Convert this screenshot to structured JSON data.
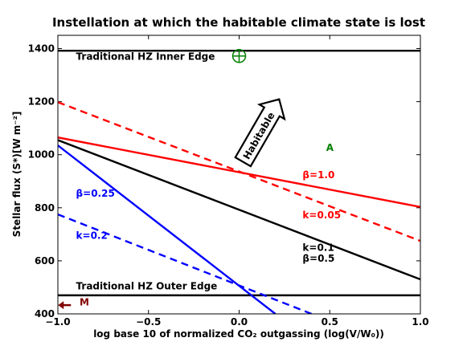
{
  "chart_data": {
    "type": "line",
    "title": "Instellation at which the habitable climate state is lost",
    "xlabel": "log base 10 of normalized CO₂ outgassing (log(V/W₀))",
    "ylabel": "Stellar flux (S*)[W m⁻²]",
    "xlim": [
      -1.0,
      1.0
    ],
    "ylim": [
      400,
      1450
    ],
    "x_ticks": [
      -1.0,
      -0.5,
      0.0,
      0.5,
      1.0
    ],
    "x_tick_labels": [
      "−1.0",
      "−0.5",
      "0.0",
      "0.5",
      "1.0"
    ],
    "y_ticks": [
      400,
      600,
      800,
      1000,
      1200,
      1400
    ],
    "y_tick_labels": [
      "400",
      "600",
      "800",
      "1000",
      "1200",
      "1400"
    ],
    "grid": false,
    "series": [
      {
        "id": "inner-edge",
        "color": "#000000",
        "style": "solid",
        "x": [
          -1.0,
          1.0
        ],
        "y": [
          1392,
          1392
        ]
      },
      {
        "id": "outer-edge",
        "color": "#000000",
        "style": "solid",
        "x": [
          -1.0,
          1.0
        ],
        "y": [
          470,
          470
        ]
      },
      {
        "id": "red-beta",
        "color": "#ff0000",
        "style": "solid",
        "x": [
          -1.0,
          1.0
        ],
        "y": [
          1065,
          803
        ]
      },
      {
        "id": "red-k",
        "color": "#ff0000",
        "style": "dashed",
        "x": [
          -1.0,
          1.0
        ],
        "y": [
          1198,
          675
        ]
      },
      {
        "id": "black",
        "color": "#000000",
        "style": "solid",
        "x": [
          -1.0,
          1.0
        ],
        "y": [
          1055,
          530
        ]
      },
      {
        "id": "blue-beta",
        "color": "#0000ff",
        "style": "solid",
        "x": [
          -1.0,
          0.2
        ],
        "y": [
          1035,
          400
        ]
      },
      {
        "id": "blue-k",
        "color": "#0000ff",
        "style": "dashed",
        "x": [
          -1.0,
          0.4
        ],
        "y": [
          775,
          400
        ]
      }
    ],
    "annotations": [
      {
        "id": "inner-edge-label",
        "text": "Traditional HZ Inner Edge",
        "x": -0.9,
        "y": 1357,
        "color": "#000000",
        "anchor": "start"
      },
      {
        "id": "outer-edge-label",
        "text": "Traditional HZ Outer Edge",
        "x": -0.9,
        "y": 492,
        "color": "#000000",
        "anchor": "start"
      },
      {
        "id": "red-beta-label",
        "text": "β=1.0",
        "x": 0.35,
        "y": 912,
        "color": "#ff0000",
        "anchor": "start"
      },
      {
        "id": "red-k-label",
        "text": "k=0.05",
        "x": 0.35,
        "y": 760,
        "color": "#ff0000",
        "anchor": "start"
      },
      {
        "id": "black-k-label",
        "text": "k=0.1",
        "x": 0.35,
        "y": 637,
        "color": "#000000",
        "anchor": "start"
      },
      {
        "id": "black-beta-label",
        "text": "β=0.5",
        "x": 0.35,
        "y": 597,
        "color": "#000000",
        "anchor": "start"
      },
      {
        "id": "blue-beta-label",
        "text": "β=0.25",
        "x": -0.9,
        "y": 842,
        "color": "#0000ff",
        "anchor": "start"
      },
      {
        "id": "blue-k-label",
        "text": "k=0.2",
        "x": -0.9,
        "y": 683,
        "color": "#0000ff",
        "anchor": "start"
      },
      {
        "id": "a-label",
        "text": "A",
        "x": 0.48,
        "y": 1015,
        "color": "#008000",
        "anchor": "start"
      },
      {
        "id": "m-label",
        "text": "M",
        "x": -0.88,
        "y": 432,
        "color": "#800000",
        "anchor": "start"
      },
      {
        "id": "habitable-label",
        "text": "Habitable",
        "x": 0.11,
        "y": 1078,
        "color": "#000000",
        "anchor": "middle"
      }
    ],
    "markers": [
      {
        "id": "earth-symbol",
        "x": 0.0,
        "y": 1372,
        "color": "#008000"
      },
      {
        "id": "m-arrow",
        "x": -0.99,
        "y": 433,
        "color": "#800000"
      }
    ]
  }
}
